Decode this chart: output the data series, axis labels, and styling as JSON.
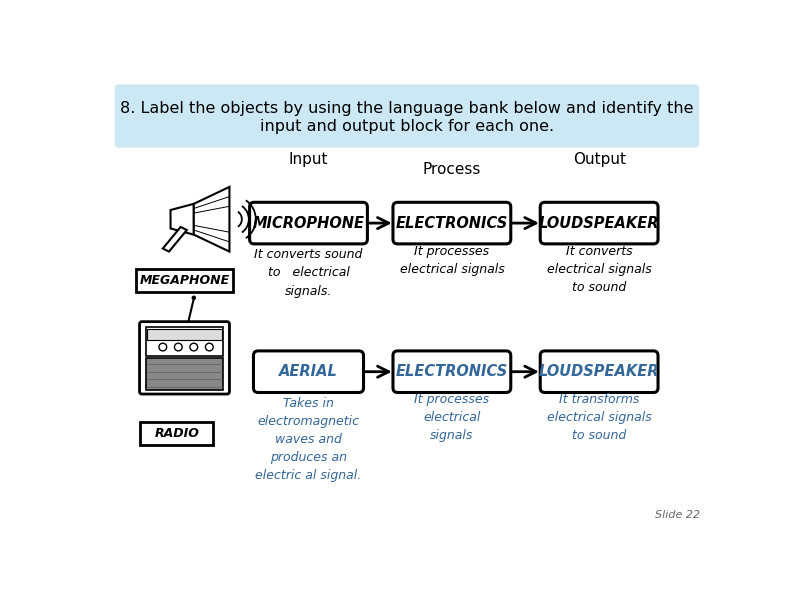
{
  "title_line1": "8. Label the objects by using the language bank below and identify the",
  "title_line2": "input and output block for each one.",
  "title_bg": "#cce8f4",
  "bg_color": "#ffffff",
  "slide_number": "Slide 22",
  "row1": {
    "input_label": "Input",
    "process_label": "Process",
    "output_label": "Output",
    "box1_text": "MICROPHONE",
    "box2_text": "ELECTRONICS",
    "box3_text": "LOUDSPEAKER",
    "desc1": "It converts sound\nto   electrical\nsignals.",
    "desc2": "It processes\nelectrical signals",
    "desc3": "It converts\nelectrical signals\nto sound",
    "image_label": "MEGAPHONE"
  },
  "row2": {
    "box1_text": "AERIAL",
    "box2_text": "ELECTRONICS",
    "box3_text": "LOUDSPEAKER",
    "desc1": "Takes in\nelectromagnetic\nwaves and\nproduces an\nelectric al signal.",
    "desc2": "It processes\nelectrical\nsignals",
    "desc3": "It transforms\nelectrical signals\nto sound",
    "image_label": "RADIO"
  },
  "box1_text_color": "#000000",
  "box2_text_color": "#000000",
  "box3_text_color": "#000000",
  "row2_box1_color": "#336699",
  "row2_box2_color": "#336699",
  "row2_box3_color": "#336699",
  "row2_desc_color": "#336699",
  "arrow_color": "#000000"
}
